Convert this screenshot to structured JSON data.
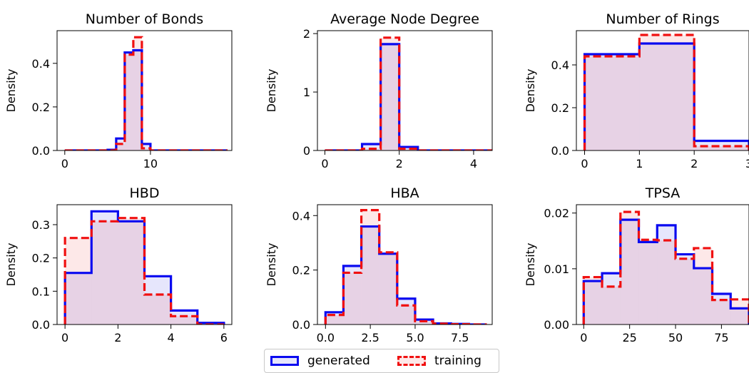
{
  "legend": {
    "generated_label": "generated",
    "training_label": "training"
  },
  "colors": {
    "generated": "#0a0af0",
    "training": "#f01010",
    "generated_fill": "rgba(60,60,230,0.13)",
    "training_fill": "rgba(240,80,80,0.13)"
  },
  "chart_data": [
    {
      "type": "histogram",
      "title": "Number of Bonds",
      "ylabel": "Density",
      "xlim": [
        -0.9,
        19.5
      ],
      "ylim": [
        0,
        0.55
      ],
      "xticks": [
        0,
        10
      ],
      "yticks": [
        0.0,
        0.2,
        0.4
      ],
      "ytick_labels": [
        "0.0",
        "0.2",
        "0.4"
      ],
      "series": [
        {
          "name": "generated",
          "edges": [
            0,
            1,
            2,
            3,
            4,
            5,
            6,
            7,
            8,
            9,
            10,
            11,
            12,
            13,
            14,
            15,
            16,
            17,
            18,
            19
          ],
          "values": [
            0,
            0,
            0,
            0,
            0,
            0.003,
            0.055,
            0.45,
            0.46,
            0.03,
            0,
            0,
            0,
            0,
            0,
            0,
            0,
            0,
            0
          ]
        },
        {
          "name": "training",
          "edges": [
            0,
            1,
            2,
            3,
            4,
            5,
            6,
            7,
            8,
            9,
            10,
            11,
            12,
            13,
            14,
            15,
            16,
            17,
            18,
            19
          ],
          "values": [
            0,
            0,
            0,
            0,
            0,
            0,
            0.03,
            0.44,
            0.52,
            0.01,
            0,
            0,
            0,
            0,
            0,
            0,
            0,
            0,
            0
          ]
        }
      ]
    },
    {
      "type": "histogram",
      "title": "Average Node Degree",
      "ylabel": "Density",
      "xlim": [
        -0.2,
        4.5
      ],
      "ylim": [
        0,
        2.05
      ],
      "xticks": [
        0,
        2,
        4
      ],
      "yticks": [
        0,
        1,
        2
      ],
      "ytick_labels": [
        "0",
        "1",
        "2"
      ],
      "series": [
        {
          "name": "generated",
          "edges": [
            0,
            0.25,
            0.5,
            0.75,
            1,
            1.25,
            1.5,
            1.75,
            2,
            2.25,
            2.5,
            2.75,
            3,
            3.25,
            3.5,
            3.75,
            4,
            4.25,
            4.5
          ],
          "values": [
            0,
            0,
            0,
            0,
            0.11,
            0.11,
            1.82,
            1.82,
            0.06,
            0.06,
            0,
            0,
            0,
            0,
            0,
            0,
            0,
            0
          ]
        },
        {
          "name": "training",
          "edges": [
            0,
            0.25,
            0.5,
            0.75,
            1,
            1.25,
            1.5,
            1.75,
            2,
            2.25,
            2.5,
            2.75,
            3,
            3.25,
            3.5,
            3.75,
            4,
            4.25,
            4.5
          ],
          "values": [
            0,
            0,
            0,
            0,
            0.03,
            0.03,
            1.93,
            1.93,
            0.03,
            0.03,
            0,
            0,
            0,
            0,
            0,
            0,
            0,
            0
          ]
        }
      ]
    },
    {
      "type": "histogram",
      "title": "Number of Rings",
      "ylabel": "Density",
      "xlim": [
        -0.15,
        3
      ],
      "ylim": [
        0,
        0.56
      ],
      "xticks": [
        0,
        1,
        2,
        3
      ],
      "yticks": [
        0.0,
        0.2,
        0.4
      ],
      "ytick_labels": [
        "0.0",
        "0.2",
        "0.4"
      ],
      "series": [
        {
          "name": "generated",
          "edges": [
            0,
            1,
            2,
            3
          ],
          "values": [
            0.45,
            0.5,
            0.045
          ]
        },
        {
          "name": "training",
          "edges": [
            0,
            1,
            2,
            3
          ],
          "values": [
            0.44,
            0.54,
            0.02
          ]
        }
      ]
    },
    {
      "type": "histogram",
      "title": "HBD",
      "ylabel": "Density",
      "xlim": [
        -0.3,
        6.3
      ],
      "ylim": [
        0,
        0.36
      ],
      "xticks": [
        0,
        2,
        4,
        6
      ],
      "yticks": [
        0.0,
        0.1,
        0.2,
        0.3
      ],
      "ytick_labels": [
        "0.0",
        "0.1",
        "0.2",
        "0.3"
      ],
      "series": [
        {
          "name": "generated",
          "edges": [
            0,
            1,
            2,
            3,
            4,
            5,
            6
          ],
          "values": [
            0.155,
            0.34,
            0.31,
            0.145,
            0.042,
            0.005
          ]
        },
        {
          "name": "training",
          "edges": [
            0,
            1,
            2,
            3,
            4,
            5,
            6
          ],
          "values": [
            0.26,
            0.31,
            0.32,
            0.09,
            0.025,
            0.0
          ]
        }
      ]
    },
    {
      "type": "histogram",
      "title": "HBA",
      "ylabel": "Density",
      "xlim": [
        -0.45,
        9.3
      ],
      "ylim": [
        0,
        0.44
      ],
      "xticks": [
        0.0,
        2.5,
        5.0,
        7.5
      ],
      "xtick_labels": [
        "0.0",
        "2.5",
        "5.0",
        "7.5"
      ],
      "yticks": [
        0.0,
        0.2,
        0.4
      ],
      "ytick_labels": [
        "0.0",
        "0.2",
        "0.4"
      ],
      "series": [
        {
          "name": "generated",
          "edges": [
            0,
            1,
            2,
            3,
            4,
            5,
            6,
            7,
            8,
            9
          ],
          "values": [
            0.045,
            0.215,
            0.36,
            0.26,
            0.095,
            0.018,
            0.004,
            0.002,
            0
          ]
        },
        {
          "name": "training",
          "edges": [
            0,
            1,
            2,
            3,
            4,
            5,
            6,
            7,
            8,
            9
          ],
          "values": [
            0.035,
            0.19,
            0.42,
            0.265,
            0.07,
            0.012,
            0.003,
            0.001,
            0
          ]
        }
      ]
    },
    {
      "type": "histogram",
      "title": "TPSA",
      "ylabel": "Density",
      "xlim": [
        -4,
        90
      ],
      "ylim": [
        0,
        0.0215
      ],
      "xticks": [
        0,
        25,
        50,
        75
      ],
      "yticks": [
        0,
        0.01,
        0.02
      ],
      "ytick_labels": [
        "0.00",
        "0.01",
        "0.02"
      ],
      "series": [
        {
          "name": "generated",
          "edges": [
            0,
            10,
            20,
            30,
            40,
            50,
            60,
            70,
            80,
            90
          ],
          "values": [
            0.0078,
            0.0092,
            0.0188,
            0.0148,
            0.0178,
            0.0126,
            0.0101,
            0.0055,
            0.0029
          ]
        },
        {
          "name": "training",
          "edges": [
            0,
            10,
            20,
            30,
            40,
            50,
            60,
            70,
            80,
            90
          ],
          "values": [
            0.0085,
            0.0068,
            0.0202,
            0.0152,
            0.0151,
            0.0118,
            0.0137,
            0.0044,
            0.0045
          ]
        }
      ]
    }
  ]
}
